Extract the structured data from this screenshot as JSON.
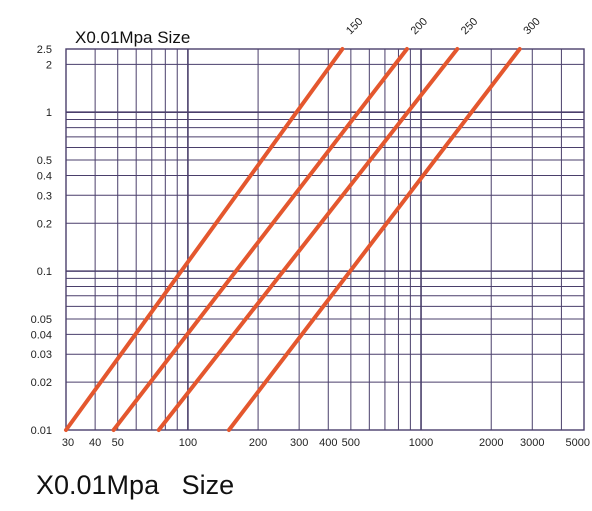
{
  "chart_data": {
    "type": "line",
    "title": "X0.01Mpa Size",
    "xscale": "log",
    "yscale": "log",
    "xlim": [
      30,
      5000
    ],
    "ylim": [
      0.01,
      2.5
    ],
    "grid": true,
    "x_ticks": [
      "30",
      "40",
      "50",
      "100",
      "200",
      "300",
      "400",
      "500",
      "1000",
      "2000",
      "3000",
      "5000"
    ],
    "y_ticks": [
      "0.01",
      "0.02",
      "0.03",
      "0.04",
      "0.05",
      "0.1",
      "0.2",
      "0.3",
      "0.4",
      "0.5",
      "1",
      "2",
      "2.5"
    ],
    "series": [
      {
        "name": "150",
        "x": [
          30,
          460
        ],
        "y": [
          0.01,
          2.5
        ]
      },
      {
        "name": "200",
        "x": [
          48,
          870
        ],
        "y": [
          0.01,
          2.5
        ]
      },
      {
        "name": "250",
        "x": [
          75,
          1430
        ],
        "y": [
          0.01,
          2.5
        ]
      },
      {
        "name": "300",
        "x": [
          150,
          2650
        ],
        "y": [
          0.01,
          2.5
        ]
      }
    ],
    "line_color": "#e4572e",
    "grid_color": "#4a3f6b"
  },
  "caption": "X0.01Mpa   Size"
}
